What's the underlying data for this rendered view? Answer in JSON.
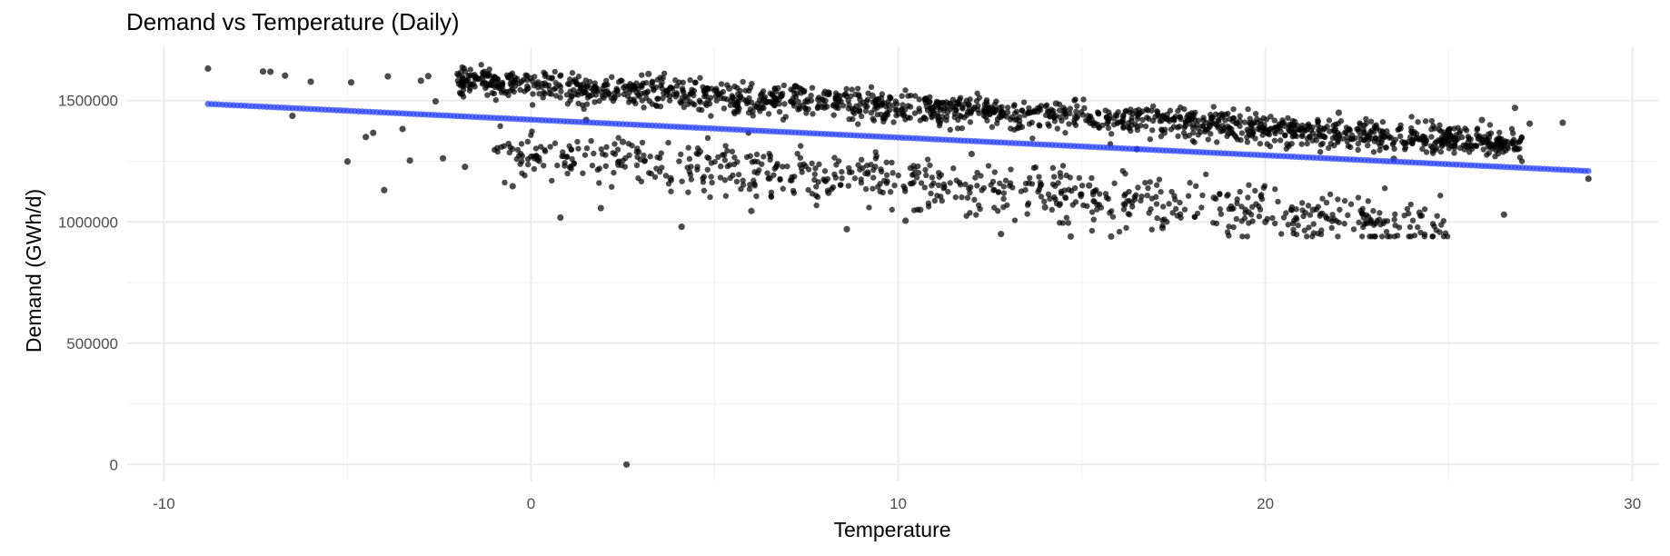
{
  "chart_data": {
    "type": "scatter",
    "title": "Demand vs Temperature (Daily)",
    "xlabel": "Temperature",
    "ylabel": "Demand (GWh/d)",
    "xlim": [
      -11,
      30.7
    ],
    "ylim": [
      -70000,
      1720000
    ],
    "x_ticks": [
      -10,
      0,
      10,
      20,
      30
    ],
    "y_ticks": [
      0,
      500000,
      1000000,
      1500000
    ],
    "x_tick_labels": [
      "-10",
      "0",
      "10",
      "20",
      "30"
    ],
    "y_tick_labels": [
      "0",
      "500000",
      "1000000",
      "1500000"
    ],
    "grid": true,
    "legend": "none",
    "colors": {
      "observed": "#000000",
      "fitted": "#1f3bff",
      "observed_opacity": 0.7,
      "fitted_opacity": 0.7
    },
    "series": [
      {
        "role": "observed",
        "x": [
          -8.8,
          -7.3,
          -7.1,
          -6.7,
          -6.5,
          -6.0,
          -5.0,
          -4.9,
          -4.5,
          -4.3,
          -4.0,
          -3.9,
          -3.5,
          -3.3,
          -3.0,
          -2.8,
          -2.6,
          -2.4,
          -2.0,
          -1.8,
          -1.5,
          -1.0,
          -0.5,
          2.6,
          0.8,
          1.2,
          1.5,
          1.9,
          2.5,
          3.2,
          3.8,
          4.1,
          4.6,
          5.4,
          6.0,
          6.5,
          7.2,
          8.1,
          8.6,
          9.3,
          10.2,
          10.6,
          11.1,
          12.0,
          12.8,
          13.3,
          14.0,
          14.3,
          14.7,
          15.2,
          15.8,
          16.5,
          17.2,
          17.9,
          18.6,
          19.3,
          20.0,
          20.6,
          21.3,
          22.0,
          22.8,
          23.5,
          24.2,
          25.0,
          25.9,
          26.5,
          26.8,
          27.2,
          28.1,
          28.8
        ],
        "y": [
          1632000,
          1620000,
          1619000,
          1603000,
          1437000,
          1578000,
          1249000,
          1575000,
          1350000,
          1367000,
          1131000,
          1600000,
          1383000,
          1253000,
          1582000,
          1601000,
          1497000,
          1262000,
          1610000,
          1227000,
          1596000,
          1590000,
          1147000,
          0,
          1018000,
          1585000,
          1420000,
          1057000,
          1330000,
          1610000,
          1180000,
          980000,
          1290000,
          1550000,
          1045000,
          1180000,
          1560000,
          1120000,
          970000,
          1520000,
          1005000,
          1050000,
          1490000,
          1280000,
          950000,
          1400000,
          1060000,
          1488000,
          940000,
          1150000,
          940000,
          1300000,
          975000,
          1440000,
          1100000,
          1415000,
          1000000,
          1320000,
          1050000,
          1450000,
          1020000,
          1260000,
          1038000,
          1380000,
          1420000,
          1030000,
          1470000,
          1405000,
          1409000,
          1178000
        ],
        "note_points": "The visible cloud contains roughly 2,200 daily observations; a representative sample is listed, the render script adds matching cloud points."
      },
      {
        "role": "fitted",
        "intercept": 1421500,
        "slope": -7350,
        "x_range": [
          -8.8,
          28.8
        ]
      }
    ]
  }
}
